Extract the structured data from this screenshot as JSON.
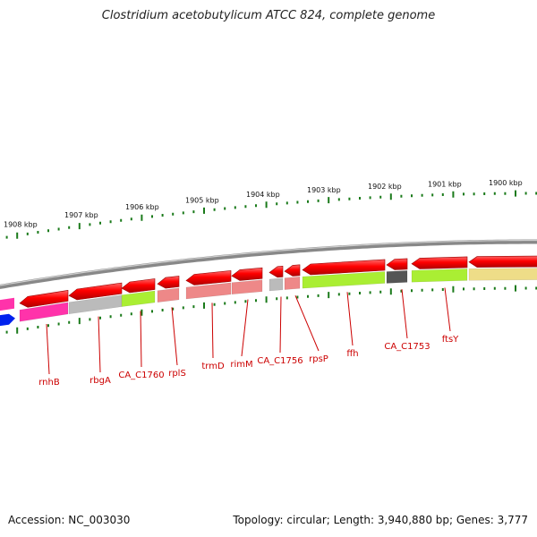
{
  "header": {
    "title": "Clostridium acetobutylicum ATCC 824, complete genome"
  },
  "footer": {
    "accession": "Accession: NC_003030",
    "summary": "Topology: circular; Length: 3,940,880 bp; Genes: 3,777"
  },
  "scale_labels": [
    "1908 kbp",
    "1907 kbp",
    "1906 kbp",
    "1905 kbp",
    "1904 kbp",
    "1903 kbp",
    "1902 kbp",
    "1901 kbp",
    "1900 kbp"
  ],
  "gene_labels": [
    "rnhB",
    "rbgA",
    "CA_C1760",
    "rplS",
    "trmD",
    "rimM",
    "CA_C1756",
    "rpsP",
    "ffh",
    "CA_C1753",
    "ftsY"
  ],
  "colors": {
    "gene_red": "#ee0000",
    "backbone": "#888888",
    "tick": "#1a7a1a",
    "label_red": "#cc0000",
    "cog_magenta": "#ff33aa",
    "cog_gray": "#bbbbbb",
    "cog_green": "#aaee33",
    "cog_salmon": "#ee8888",
    "cog_dark": "#555555",
    "cog_khaki": "#eedd88",
    "cog_blue": "#0022ee"
  }
}
